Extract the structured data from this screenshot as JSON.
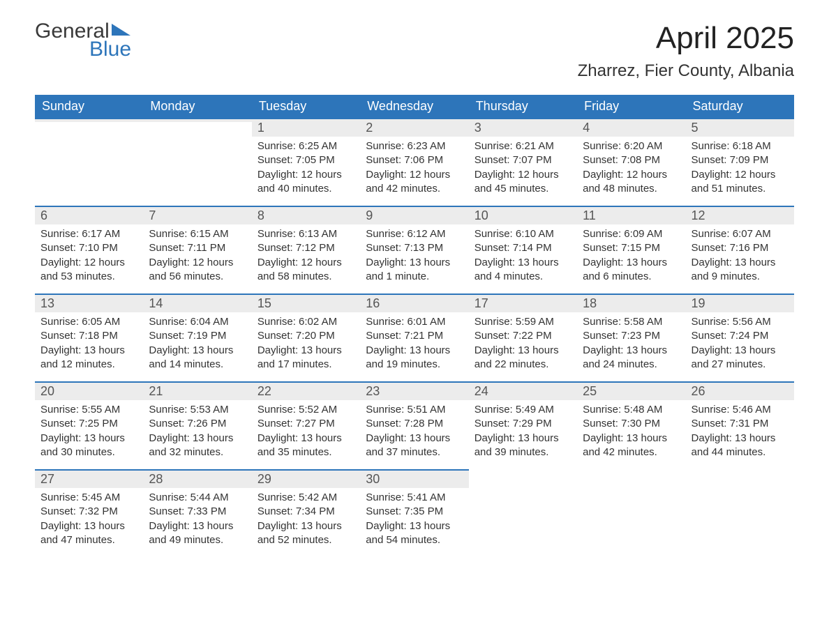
{
  "logo": {
    "word1": "General",
    "word2": "Blue",
    "triangle_color": "#2d75ba"
  },
  "title": "April 2025",
  "location": "Zharrez, Fier County, Albania",
  "colors": {
    "header_bg": "#2d75ba",
    "header_text": "#ffffff",
    "daybar_bg": "#ececec",
    "daybar_border": "#2d75ba",
    "text": "#333333",
    "page_bg": "#ffffff"
  },
  "fonts": {
    "month_title_size_pt": 33,
    "location_size_pt": 18,
    "weekday_size_pt": 14,
    "daynum_size_pt": 14,
    "body_size_pt": 11
  },
  "weekdays": [
    "Sunday",
    "Monday",
    "Tuesday",
    "Wednesday",
    "Thursday",
    "Friday",
    "Saturday"
  ],
  "weeks": [
    [
      {
        "n": "",
        "sunrise": "",
        "sunset": "",
        "daylight": "",
        "empty": true
      },
      {
        "n": "",
        "sunrise": "",
        "sunset": "",
        "daylight": "",
        "empty": true
      },
      {
        "n": "1",
        "sunrise": "Sunrise: 6:25 AM",
        "sunset": "Sunset: 7:05 PM",
        "daylight": "Daylight: 12 hours and 40 minutes."
      },
      {
        "n": "2",
        "sunrise": "Sunrise: 6:23 AM",
        "sunset": "Sunset: 7:06 PM",
        "daylight": "Daylight: 12 hours and 42 minutes."
      },
      {
        "n": "3",
        "sunrise": "Sunrise: 6:21 AM",
        "sunset": "Sunset: 7:07 PM",
        "daylight": "Daylight: 12 hours and 45 minutes."
      },
      {
        "n": "4",
        "sunrise": "Sunrise: 6:20 AM",
        "sunset": "Sunset: 7:08 PM",
        "daylight": "Daylight: 12 hours and 48 minutes."
      },
      {
        "n": "5",
        "sunrise": "Sunrise: 6:18 AM",
        "sunset": "Sunset: 7:09 PM",
        "daylight": "Daylight: 12 hours and 51 minutes."
      }
    ],
    [
      {
        "n": "6",
        "sunrise": "Sunrise: 6:17 AM",
        "sunset": "Sunset: 7:10 PM",
        "daylight": "Daylight: 12 hours and 53 minutes."
      },
      {
        "n": "7",
        "sunrise": "Sunrise: 6:15 AM",
        "sunset": "Sunset: 7:11 PM",
        "daylight": "Daylight: 12 hours and 56 minutes."
      },
      {
        "n": "8",
        "sunrise": "Sunrise: 6:13 AM",
        "sunset": "Sunset: 7:12 PM",
        "daylight": "Daylight: 12 hours and 58 minutes."
      },
      {
        "n": "9",
        "sunrise": "Sunrise: 6:12 AM",
        "sunset": "Sunset: 7:13 PM",
        "daylight": "Daylight: 13 hours and 1 minute."
      },
      {
        "n": "10",
        "sunrise": "Sunrise: 6:10 AM",
        "sunset": "Sunset: 7:14 PM",
        "daylight": "Daylight: 13 hours and 4 minutes."
      },
      {
        "n": "11",
        "sunrise": "Sunrise: 6:09 AM",
        "sunset": "Sunset: 7:15 PM",
        "daylight": "Daylight: 13 hours and 6 minutes."
      },
      {
        "n": "12",
        "sunrise": "Sunrise: 6:07 AM",
        "sunset": "Sunset: 7:16 PM",
        "daylight": "Daylight: 13 hours and 9 minutes."
      }
    ],
    [
      {
        "n": "13",
        "sunrise": "Sunrise: 6:05 AM",
        "sunset": "Sunset: 7:18 PM",
        "daylight": "Daylight: 13 hours and 12 minutes."
      },
      {
        "n": "14",
        "sunrise": "Sunrise: 6:04 AM",
        "sunset": "Sunset: 7:19 PM",
        "daylight": "Daylight: 13 hours and 14 minutes."
      },
      {
        "n": "15",
        "sunrise": "Sunrise: 6:02 AM",
        "sunset": "Sunset: 7:20 PM",
        "daylight": "Daylight: 13 hours and 17 minutes."
      },
      {
        "n": "16",
        "sunrise": "Sunrise: 6:01 AM",
        "sunset": "Sunset: 7:21 PM",
        "daylight": "Daylight: 13 hours and 19 minutes."
      },
      {
        "n": "17",
        "sunrise": "Sunrise: 5:59 AM",
        "sunset": "Sunset: 7:22 PM",
        "daylight": "Daylight: 13 hours and 22 minutes."
      },
      {
        "n": "18",
        "sunrise": "Sunrise: 5:58 AM",
        "sunset": "Sunset: 7:23 PM",
        "daylight": "Daylight: 13 hours and 24 minutes."
      },
      {
        "n": "19",
        "sunrise": "Sunrise: 5:56 AM",
        "sunset": "Sunset: 7:24 PM",
        "daylight": "Daylight: 13 hours and 27 minutes."
      }
    ],
    [
      {
        "n": "20",
        "sunrise": "Sunrise: 5:55 AM",
        "sunset": "Sunset: 7:25 PM",
        "daylight": "Daylight: 13 hours and 30 minutes."
      },
      {
        "n": "21",
        "sunrise": "Sunrise: 5:53 AM",
        "sunset": "Sunset: 7:26 PM",
        "daylight": "Daylight: 13 hours and 32 minutes."
      },
      {
        "n": "22",
        "sunrise": "Sunrise: 5:52 AM",
        "sunset": "Sunset: 7:27 PM",
        "daylight": "Daylight: 13 hours and 35 minutes."
      },
      {
        "n": "23",
        "sunrise": "Sunrise: 5:51 AM",
        "sunset": "Sunset: 7:28 PM",
        "daylight": "Daylight: 13 hours and 37 minutes."
      },
      {
        "n": "24",
        "sunrise": "Sunrise: 5:49 AM",
        "sunset": "Sunset: 7:29 PM",
        "daylight": "Daylight: 13 hours and 39 minutes."
      },
      {
        "n": "25",
        "sunrise": "Sunrise: 5:48 AM",
        "sunset": "Sunset: 7:30 PM",
        "daylight": "Daylight: 13 hours and 42 minutes."
      },
      {
        "n": "26",
        "sunrise": "Sunrise: 5:46 AM",
        "sunset": "Sunset: 7:31 PM",
        "daylight": "Daylight: 13 hours and 44 minutes."
      }
    ],
    [
      {
        "n": "27",
        "sunrise": "Sunrise: 5:45 AM",
        "sunset": "Sunset: 7:32 PM",
        "daylight": "Daylight: 13 hours and 47 minutes."
      },
      {
        "n": "28",
        "sunrise": "Sunrise: 5:44 AM",
        "sunset": "Sunset: 7:33 PM",
        "daylight": "Daylight: 13 hours and 49 minutes."
      },
      {
        "n": "29",
        "sunrise": "Sunrise: 5:42 AM",
        "sunset": "Sunset: 7:34 PM",
        "daylight": "Daylight: 13 hours and 52 minutes."
      },
      {
        "n": "30",
        "sunrise": "Sunrise: 5:41 AM",
        "sunset": "Sunset: 7:35 PM",
        "daylight": "Daylight: 13 hours and 54 minutes."
      },
      {
        "n": "",
        "sunrise": "",
        "sunset": "",
        "daylight": "",
        "empty": true
      },
      {
        "n": "",
        "sunrise": "",
        "sunset": "",
        "daylight": "",
        "empty": true
      },
      {
        "n": "",
        "sunrise": "",
        "sunset": "",
        "daylight": "",
        "empty": true
      }
    ]
  ]
}
